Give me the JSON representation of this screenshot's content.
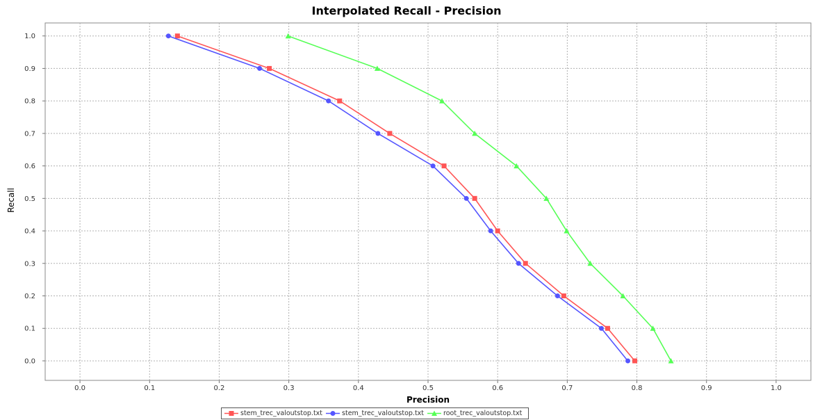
{
  "chart_data": {
    "type": "line",
    "title": "Interpolated Recall - Precision",
    "xlabel": "Precision",
    "ylabel": "Recall",
    "xlim": [
      -0.05,
      1.05
    ],
    "ylim": [
      -0.06,
      1.04
    ],
    "xticks": [
      "0.0",
      "0.1",
      "0.2",
      "0.3",
      "0.4",
      "0.5",
      "0.6",
      "0.7",
      "0.8",
      "0.9",
      "1.0"
    ],
    "yticks": [
      "0.0",
      "0.1",
      "0.2",
      "0.3",
      "0.4",
      "0.5",
      "0.6",
      "0.7",
      "0.8",
      "0.9",
      "1.0"
    ],
    "grid": true,
    "legend_position": "bottom",
    "series": [
      {
        "name": "stem_trec_valoutstop.txt",
        "color": "#ff5555",
        "marker": "square",
        "points": [
          [
            0.14,
            1.0
          ],
          [
            0.272,
            0.9
          ],
          [
            0.373,
            0.8
          ],
          [
            0.445,
            0.7
          ],
          [
            0.523,
            0.6
          ],
          [
            0.567,
            0.5
          ],
          [
            0.6,
            0.4
          ],
          [
            0.64,
            0.3
          ],
          [
            0.695,
            0.2
          ],
          [
            0.758,
            0.1
          ],
          [
            0.797,
            0.0
          ]
        ]
      },
      {
        "name": "stem_trec_valoutstop.txt",
        "color": "#5555ff",
        "marker": "circle",
        "points": [
          [
            0.127,
            1.0
          ],
          [
            0.258,
            0.9
          ],
          [
            0.357,
            0.8
          ],
          [
            0.428,
            0.7
          ],
          [
            0.507,
            0.6
          ],
          [
            0.555,
            0.5
          ],
          [
            0.59,
            0.4
          ],
          [
            0.63,
            0.3
          ],
          [
            0.686,
            0.2
          ],
          [
            0.749,
            0.1
          ],
          [
            0.787,
            0.0
          ]
        ]
      },
      {
        "name": "root_trec_valoutstop.txt",
        "color": "#55ff55",
        "marker": "triangle",
        "points": [
          [
            0.299,
            1.0
          ],
          [
            0.427,
            0.9
          ],
          [
            0.52,
            0.8
          ],
          [
            0.567,
            0.7
          ],
          [
            0.627,
            0.6
          ],
          [
            0.67,
            0.5
          ],
          [
            0.699,
            0.4
          ],
          [
            0.733,
            0.3
          ],
          [
            0.78,
            0.2
          ],
          [
            0.823,
            0.1
          ],
          [
            0.849,
            0.0
          ]
        ]
      }
    ]
  }
}
